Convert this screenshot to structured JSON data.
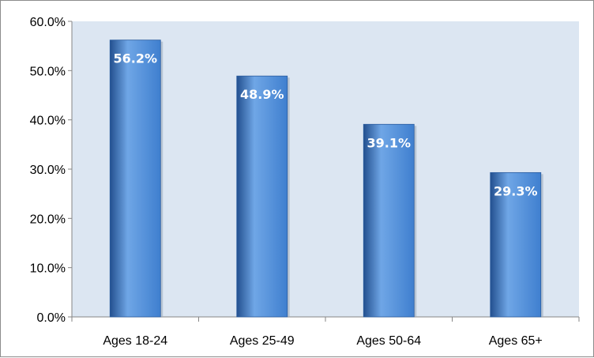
{
  "chart_data": {
    "type": "bar",
    "categories": [
      "Ages 18-24",
      "Ages 25-49",
      "Ages 50-64",
      "Ages 65+"
    ],
    "values": [
      56.2,
      48.9,
      39.1,
      29.3
    ],
    "data_labels": [
      "56.2%",
      "48.9%",
      "39.1%",
      "29.3%"
    ],
    "title": "",
    "xlabel": "",
    "ylabel": "",
    "ylim": [
      0,
      60
    ],
    "y_ticks": [
      0,
      10,
      20,
      30,
      40,
      50,
      60
    ],
    "y_tick_labels": [
      "0.0%",
      "10.0%",
      "20.0%",
      "30.0%",
      "40.0%",
      "50.0%",
      "60.0%"
    ],
    "grid": false,
    "legend": "none",
    "colors": {
      "bar": "#3f7fcf",
      "bar_light": "#6fa6e6",
      "bar_dark": "#23508f",
      "plot_background": "#dce6f2",
      "axis": "#868686"
    }
  }
}
